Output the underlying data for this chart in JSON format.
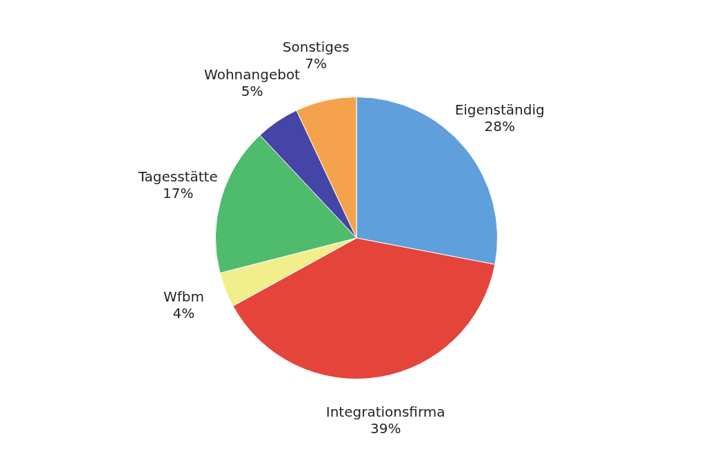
{
  "chart_data": {
    "type": "pie",
    "categories": [
      "Eigenständig",
      "Integrationsfirma",
      "Wfbm",
      "Tagesstätte",
      "Wohnangebot",
      "Sonstiges"
    ],
    "values": [
      28,
      39,
      4,
      17,
      5,
      7
    ],
    "colors": [
      "#5f9fdc",
      "#e5443b",
      "#f2ee8c",
      "#4fbb6c",
      "#4545a8",
      "#f4a34c"
    ],
    "value_labels": [
      "28%",
      "39%",
      "4%",
      "17%",
      "5%",
      "7%"
    ],
    "legend": false
  }
}
